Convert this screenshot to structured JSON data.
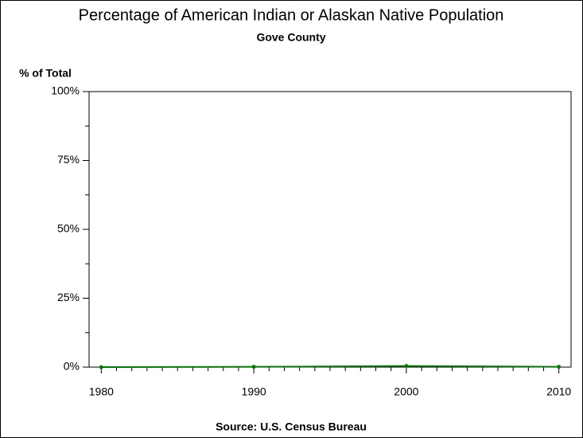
{
  "chart_data": {
    "type": "line",
    "title": "Percentage of American Indian or Alaskan Native Population",
    "subtitle": "Gove County",
    "y_axis_label": "% of Total",
    "source": "Source: U.S. Census Bureau",
    "x": [
      1980,
      1990,
      2000,
      2010
    ],
    "series": [
      {
        "name": "Gove County",
        "color": "#007a00",
        "values": [
          0,
          0.1,
          0.4,
          0.1
        ]
      }
    ],
    "xlim": [
      1979.2,
      2010.8
    ],
    "xticks": [
      1980,
      1990,
      2000,
      2010
    ],
    "ylim": [
      0,
      100
    ],
    "yticks": [
      {
        "value": 0,
        "label": "0%"
      },
      {
        "value": 25,
        "label": "25%"
      },
      {
        "value": 50,
        "label": "50%"
      },
      {
        "value": 75,
        "label": "75%"
      },
      {
        "value": 100,
        "label": "100%"
      }
    ],
    "grid": false
  }
}
